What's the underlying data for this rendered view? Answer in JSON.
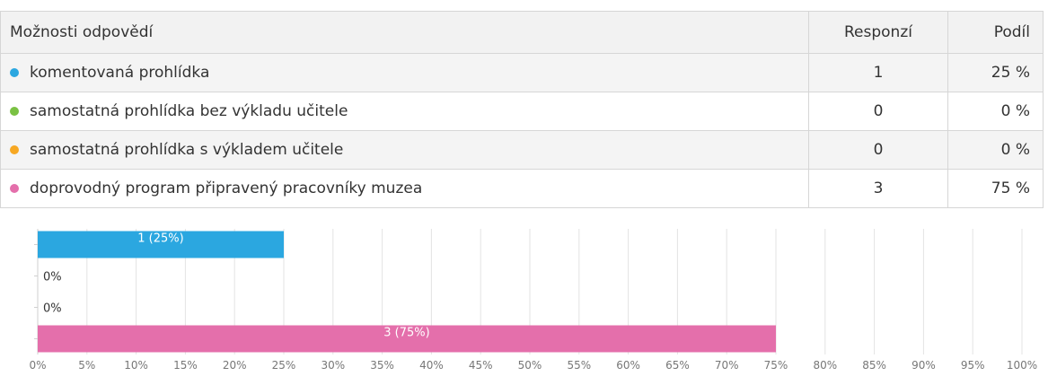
{
  "table": {
    "headers": {
      "option": "Možnosti odpovědí",
      "responses": "Responzí",
      "share": "Podíl"
    },
    "rows": [
      {
        "label": "komentovaná prohlídka",
        "responses": "1",
        "share": "25 %",
        "color": "#2ba7e0"
      },
      {
        "label": "samostatná prohlídka bez výkladu učitele",
        "responses": "0",
        "share": "0 %",
        "color": "#7ac143"
      },
      {
        "label": "samostatná prohlídka s výkladem učitele",
        "responses": "0",
        "share": "0 %",
        "color": "#f7a823"
      },
      {
        "label": "doprovodný program připravený pracovníky muzea",
        "responses": "3",
        "share": "75 %",
        "color": "#e46fab"
      }
    ]
  },
  "chart_data": {
    "type": "bar",
    "orientation": "horizontal",
    "categories": [
      "komentovaná prohlídka",
      "samostatná prohlídka bez výkladu učitele",
      "samostatná prohlídka s výkladem učitele",
      "doprovodný program připravený pracovníky muzea"
    ],
    "values": [
      25,
      0,
      0,
      75
    ],
    "data_labels": [
      "1 (25%)",
      "0%",
      "0%",
      "3 (75%)"
    ],
    "colors": [
      "#2ba7e0",
      "#7ac143",
      "#f7a823",
      "#e46fab"
    ],
    "xlim": [
      0,
      100
    ],
    "x_ticks": [
      "0%",
      "5%",
      "10%",
      "15%",
      "20%",
      "25%",
      "30%",
      "35%",
      "40%",
      "45%",
      "50%",
      "55%",
      "60%",
      "65%",
      "70%",
      "75%",
      "80%",
      "85%",
      "90%",
      "95%",
      "100%"
    ],
    "grid": true
  }
}
